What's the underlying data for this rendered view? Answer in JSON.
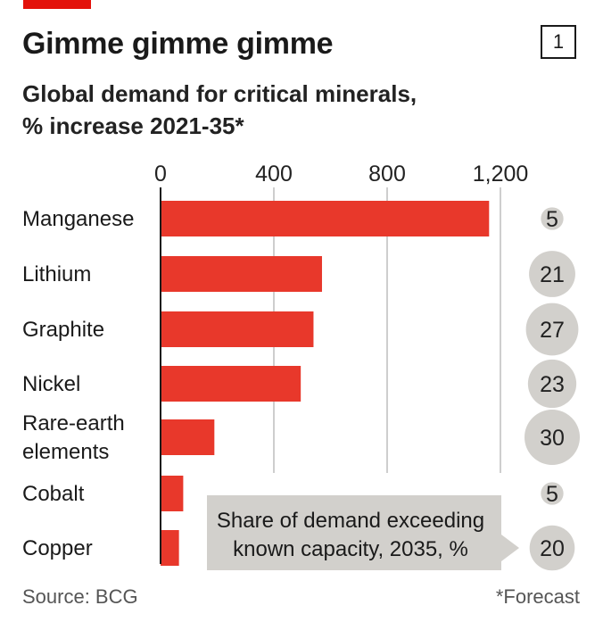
{
  "header": {
    "title": "Gimme gimme gimme",
    "figure_number": "1",
    "subtitle_line1": "Global demand for critical minerals,",
    "subtitle_line2": "% increase 2021-35*"
  },
  "footer": {
    "source": "Source: BCG",
    "note": "*Forecast"
  },
  "colors": {
    "bar": "#e8382b",
    "circle": "#d2d0cc",
    "callout_bg": "#d2d0cc",
    "grid": "#bdbdbd",
    "accent": "#e3120b"
  },
  "chart_data": {
    "type": "bar",
    "orientation": "horizontal",
    "title": "Global demand for critical minerals, % increase 2021-35*",
    "categories": [
      "Manganese",
      "Lithium",
      "Graphite",
      "Nickel",
      "Rare-earth elements",
      "Cobalt",
      "Copper"
    ],
    "values": [
      1160,
      570,
      540,
      495,
      190,
      80,
      65
    ],
    "xlim": [
      0,
      1200
    ],
    "xticks": [
      0,
      400,
      800,
      1200
    ],
    "xtick_labels": [
      "0",
      "400",
      "800",
      "1,200"
    ],
    "grid": true,
    "share_series": {
      "label": "Share of demand exceeding known capacity, 2035, %",
      "values": [
        5,
        21,
        27,
        23,
        30,
        5,
        20
      ]
    }
  }
}
